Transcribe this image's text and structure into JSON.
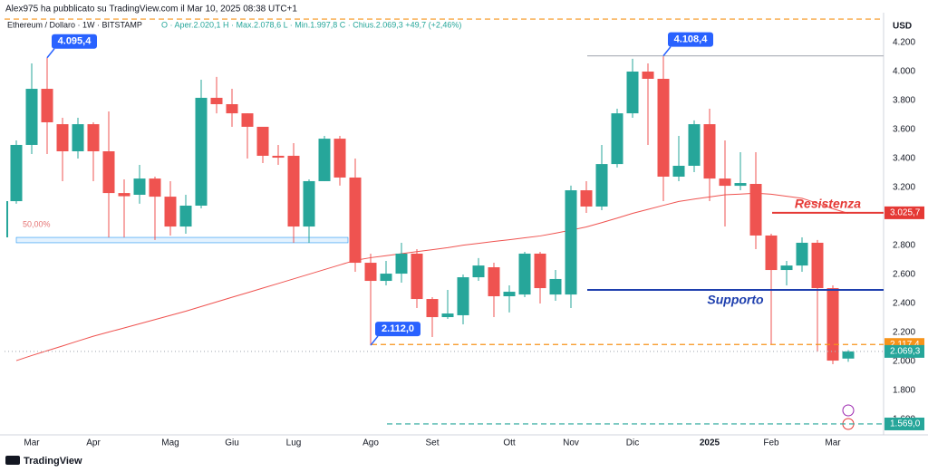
{
  "chart_data": {
    "type": "candlestick",
    "publisher_note": "Alex975 ha pubblicato su TradingView.com il Mar 10, 2025 08:38 UTC+1",
    "symbol_info": "Ethereum / Dollaro · 1W · BITSTAMP",
    "ohlc_info": "O · Aper.2.020,1   H · Max.2.078,6   L · Min.1.997,8   C · Chius.2.069,3   +49,7 (+2,46%)",
    "currency": "USD",
    "footer": "TradingView",
    "categories": [
      null,
      "Mar",
      null,
      null,
      null,
      "Apr",
      null,
      null,
      null,
      null,
      "Mag",
      null,
      null,
      null,
      "Giu",
      null,
      null,
      null,
      "Lug",
      null,
      null,
      null,
      null,
      "Ago",
      null,
      null,
      null,
      "Set",
      null,
      null,
      null,
      null,
      "Ott",
      null,
      null,
      null,
      "Nov",
      null,
      null,
      null,
      "Dic",
      null,
      null,
      null,
      null,
      "2025",
      null,
      null,
      null,
      "Feb",
      null,
      null,
      null,
      "Mar",
      null
    ],
    "open": [
      3106,
      3494,
      3881,
      3637,
      3450,
      3637,
      3450,
      3162,
      3150,
      3262,
      3137,
      2931,
      3075,
      3819,
      3775,
      3712,
      3619,
      3419,
      3419,
      2931,
      3244,
      3537,
      3269,
      2681,
      2556,
      2606,
      2744,
      2431,
      2306,
      2319,
      2581,
      2650,
      2450,
      2462,
      2744,
      2462,
      2462,
      3181,
      3069,
      3362,
      3712,
      4000,
      3950,
      3275,
      3350,
      3637,
      3262,
      3212,
      3225,
      2869,
      2631,
      2662,
      2819,
      2506,
      2020.1
    ],
    "high": [
      3525,
      4056,
      4095.4,
      3681,
      3681,
      3650,
      3725,
      3256,
      3356,
      3275,
      3244,
      3150,
      3944,
      3963,
      3881,
      3712,
      3619,
      3494,
      3506,
      3256,
      3556,
      3556,
      3400,
      2744,
      2694,
      2819,
      2775,
      2444,
      2494,
      2600,
      2713,
      2681,
      2525,
      2756,
      2756,
      2631,
      3213,
      3244,
      3494,
      3744,
      4088,
      4056,
      4108.4,
      3556,
      3663,
      3744,
      3525,
      3444,
      3444,
      2881,
      2694,
      2856,
      2838,
      2525,
      2078.6
    ],
    "low": [
      3088,
      3431,
      3431,
      3244,
      3400,
      3244,
      2856,
      2856,
      3088,
      2838,
      2869,
      2881,
      3056,
      3712,
      3619,
      3400,
      3369,
      3356,
      2819,
      2819,
      3244,
      3213,
      2619,
      2112.0,
      2525,
      2544,
      2369,
      2169,
      2294,
      2256,
      2556,
      2306,
      2338,
      2444,
      2400,
      2419,
      2369,
      3025,
      3044,
      3338,
      3681,
      3494,
      3106,
      3244,
      3306,
      3106,
      2931,
      3181,
      2775,
      2119,
      2525,
      2619,
      2069,
      1981,
      1997.8
    ],
    "close": [
      3494,
      3881,
      3650,
      3450,
      3637,
      3450,
      3162,
      3140,
      3262,
      3137,
      2931,
      3075,
      3819,
      3775,
      3712,
      3619,
      3419,
      3406,
      2931,
      3244,
      3537,
      3269,
      2681,
      2556,
      2606,
      2744,
      2431,
      2306,
      2331,
      2581,
      2662,
      2450,
      2481,
      2744,
      2506,
      2569,
      3181,
      3069,
      3362,
      3712,
      4000,
      3950,
      3275,
      3350,
      3637,
      3262,
      3212,
      3231,
      2869,
      2631,
      2662,
      2819,
      2506,
      2006,
      2069.3
    ],
    "up_color": "#26a69a",
    "down_color": "#ef5350",
    "moving_average": {
      "color": "#ef5350",
      "values": [
        2006,
        2041,
        2074,
        2107,
        2141,
        2174,
        2203,
        2231,
        2260,
        2289,
        2318,
        2347,
        2379,
        2411,
        2443,
        2474,
        2506,
        2538,
        2570,
        2602,
        2634,
        2666,
        2698,
        2716,
        2730,
        2744,
        2758,
        2771,
        2785,
        2802,
        2815,
        2828,
        2840,
        2853,
        2866,
        2885,
        2906,
        2928,
        2958,
        2989,
        3022,
        3049,
        3077,
        3104,
        3120,
        3135,
        3150,
        3155,
        3161,
        3154,
        3140,
        3126,
        3091,
        3054,
        3022
      ]
    },
    "ylim": [
      1500,
      4375
    ],
    "yticks": [
      {
        "value": 1600,
        "label": "1.600"
      },
      {
        "value": 1800,
        "label": "1.800"
      },
      {
        "value": 2000,
        "label": "2.000"
      },
      {
        "value": 2200,
        "label": "2.200"
      },
      {
        "value": 2400,
        "label": "2.400"
      },
      {
        "value": 2600,
        "label": "2.600"
      },
      {
        "value": 2800,
        "label": "2.800"
      },
      {
        "value": 3000,
        "label": "3.000"
      },
      {
        "value": 3200,
        "label": "3.200"
      },
      {
        "value": 3400,
        "label": "3.400"
      },
      {
        "value": 3600,
        "label": "3.600"
      },
      {
        "value": 3800,
        "label": "3.800"
      },
      {
        "value": 4000,
        "label": "4.000"
      },
      {
        "value": 4200,
        "label": "4.200"
      }
    ],
    "grid": false,
    "price_lines": [
      {
        "value": 4362,
        "color": "#f7931a",
        "style": "dashed",
        "from": 0
      },
      {
        "value": 4108.4,
        "color": "#b2b5be",
        "style": "solid",
        "from": 37
      },
      {
        "value": 3025.7,
        "label": "3.025,7",
        "color": "#e53935",
        "style": "solid",
        "from": 49,
        "text": "Resistenza"
      },
      {
        "value": 2494,
        "color": "#1e3fae",
        "style": "solid",
        "from": 37,
        "text": "Supporto"
      },
      {
        "value": 2117.4,
        "label": "2.117,4",
        "color": "#f7931a",
        "style": "dashed",
        "from": 23
      },
      {
        "value": 2069.3,
        "label": "2.069,3",
        "color": "#26a69a",
        "style": "dotted",
        "from": 0
      },
      {
        "value": 1569.0,
        "label": "1.569,0",
        "color": "#26a69a",
        "style": "dashed",
        "from": 24
      }
    ],
    "fib_zone": {
      "high": 2856,
      "low": 2819,
      "from": 0,
      "to": 22,
      "level": {
        "value": 50,
        "label": "50,00%"
      }
    },
    "callouts": [
      {
        "value": 4095.4,
        "label": "4.095,4",
        "index": 2
      },
      {
        "value": 2112.0,
        "label": "2.112,0",
        "index": 23
      },
      {
        "value": 4108.4,
        "label": "4.108,4",
        "index": 42
      }
    ]
  }
}
